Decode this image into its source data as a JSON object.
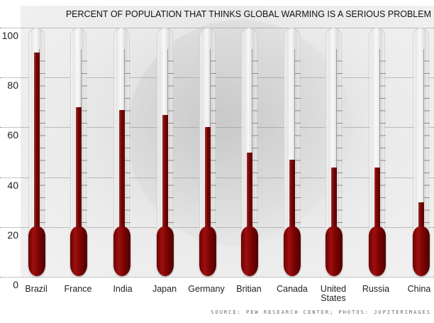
{
  "chart_data": {
    "type": "bar",
    "title": "PERCENT OF POPULATION THAT THINKS GLOBAL WARMING IS A SERIOUS PROBLEM",
    "categories": [
      "Brazil",
      "France",
      "India",
      "Japan",
      "Germany",
      "Britian",
      "Canada",
      "United States",
      "Russia",
      "China"
    ],
    "values": [
      90,
      68,
      67,
      65,
      60,
      50,
      47,
      44,
      44,
      30
    ],
    "xlabel": "",
    "ylabel": "",
    "ylim": [
      0,
      100
    ],
    "yticks": [
      0,
      20,
      40,
      60,
      80,
      100
    ],
    "grid": true,
    "style": "thermometer",
    "bar_color": "#7a0606",
    "source": "SOURCE: PEW RESEARCH CENTER; PHOTOS: JUPITERIMAGES"
  },
  "yticks_labels": [
    "100",
    "80",
    "60",
    "40",
    "20",
    "0"
  ],
  "labels": {
    "c0": "Brazil",
    "c1": "France",
    "c2": "India",
    "c3": "Japan",
    "c4": "Germany",
    "c5": "Britian",
    "c6": "Canada",
    "c7a": "United",
    "c7b": "States",
    "c8": "Russia",
    "c9": "China"
  }
}
